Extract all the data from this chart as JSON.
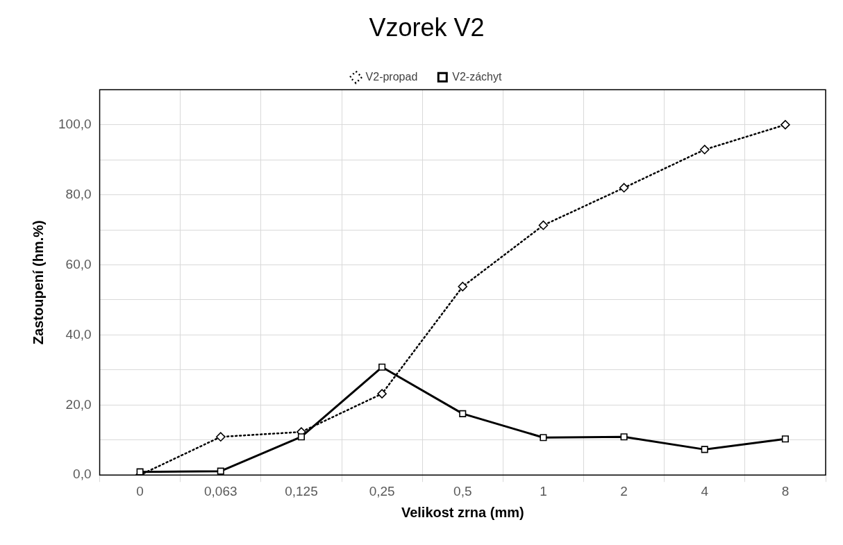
{
  "chart_data": {
    "type": "line",
    "title": "Vzorek V2",
    "xlabel": "Velikost zrna (mm)",
    "ylabel": "Zastoupení (hm.%)",
    "categories": [
      "0",
      "0,063",
      "0,125",
      "0,25",
      "0,5",
      "1",
      "2",
      "4",
      "8"
    ],
    "series": [
      {
        "name": "V2-propad",
        "color": "#000000",
        "marker": "diamond",
        "line_style": "dotted",
        "values": [
          0.0,
          10.9,
          12.3,
          23.2,
          53.8,
          71.3,
          82.0,
          92.9,
          100.0
        ]
      },
      {
        "name": "V2-záchyt",
        "color": "#000000",
        "marker": "square",
        "line_style": "solid",
        "values": [
          0.9,
          1.1,
          10.9,
          30.8,
          17.5,
          10.7,
          10.9,
          7.3,
          10.3
        ]
      }
    ],
    "ylim": [
      0,
      110
    ],
    "yticks": [
      {
        "value": 0,
        "label": "0,0"
      },
      {
        "value": 10,
        "label": null
      },
      {
        "value": 20,
        "label": "20,0"
      },
      {
        "value": 30,
        "label": null
      },
      {
        "value": 40,
        "label": "40,0"
      },
      {
        "value": 50,
        "label": null
      },
      {
        "value": 60,
        "label": "60,0"
      },
      {
        "value": 70,
        "label": null
      },
      {
        "value": 80,
        "label": "80,0"
      },
      {
        "value": 90,
        "label": null
      },
      {
        "value": 100,
        "label": "100,0"
      },
      {
        "value": 110,
        "label": null
      }
    ],
    "grid": true,
    "legend": "top"
  }
}
